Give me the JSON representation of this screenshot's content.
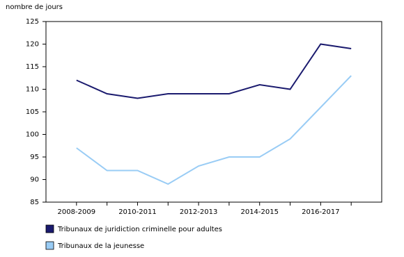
{
  "chart_data": {
    "type": "line",
    "y_label": "nombre de jours",
    "categories": [
      "2008-2009",
      null,
      "2010-2011",
      null,
      "2012-2013",
      null,
      "2014-2015",
      null,
      "2016-2017",
      null
    ],
    "series": [
      {
        "name": "Tribunaux de juridiction criminelle pour adultes",
        "color": "#1a1a6e",
        "values": [
          112,
          109,
          108,
          109,
          109,
          109,
          111,
          110,
          120,
          119
        ]
      },
      {
        "name": "Tribunaux de la jeunesse",
        "color": "#99ccf5",
        "values": [
          97,
          92,
          92,
          89,
          93,
          95,
          95,
          99,
          106,
          113
        ]
      }
    ],
    "ylim": [
      85,
      125
    ],
    "yticks": [
      85,
      90,
      95,
      100,
      105,
      110,
      115,
      120,
      125
    ],
    "grid": false
  }
}
